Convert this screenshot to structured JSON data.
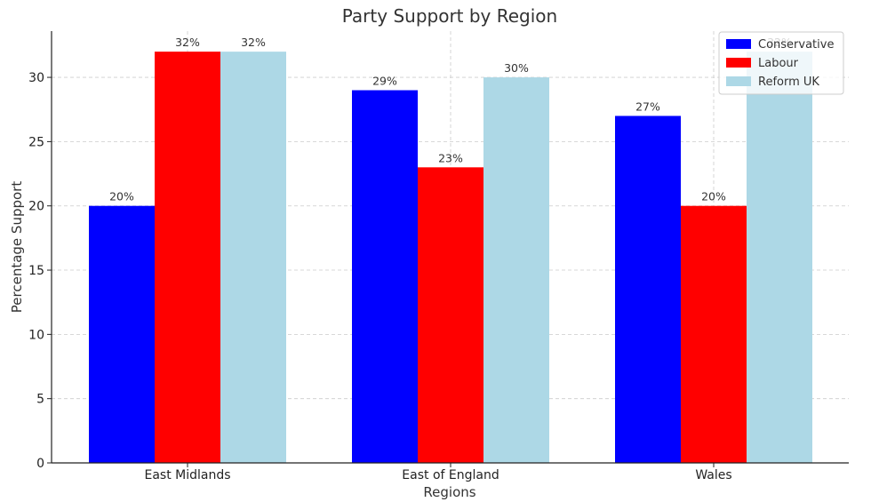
{
  "chart_data": {
    "type": "bar",
    "title": "Party Support by Region",
    "xlabel": "Regions",
    "ylabel": "Percentage Support",
    "categories": [
      "East Midlands",
      "East of England",
      "Wales"
    ],
    "series": [
      {
        "name": "Conservative",
        "color": "#0000ff",
        "values": [
          20,
          29,
          27
        ],
        "labels": [
          "20%",
          "29%",
          "27%"
        ]
      },
      {
        "name": "Labour",
        "color": "#ff0000",
        "values": [
          32,
          23,
          20
        ],
        "labels": [
          "32%",
          "23%",
          "20%"
        ]
      },
      {
        "name": "Reform UK",
        "color": "#add8e6",
        "values": [
          32,
          30,
          32
        ],
        "labels": [
          "32%",
          "30%",
          "32%"
        ]
      }
    ],
    "ylim": [
      0,
      33.6
    ],
    "yticks": [
      0,
      5,
      10,
      15,
      20,
      25,
      30
    ],
    "grid": true,
    "legend_position": "top-right"
  }
}
